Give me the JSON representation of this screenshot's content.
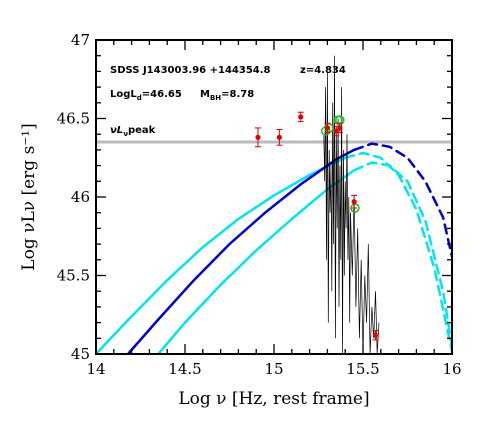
{
  "chart_data": {
    "type": "line",
    "xlabel": "Log ν [Hz, rest frame]",
    "ylabel": "Log νLν [erg s⁻¹]",
    "xlim": [
      14,
      16
    ],
    "ylim": [
      45,
      47
    ],
    "x_ticks": [
      14,
      14.5,
      15,
      15.5,
      16
    ],
    "y_ticks": [
      45,
      45.5,
      46,
      46.5,
      47
    ],
    "x_tick_labels": [
      "14",
      "14.5",
      "15",
      "15.5",
      "16"
    ],
    "y_tick_labels": [
      "45",
      "45.5",
      "46",
      "46.5",
      "47"
    ],
    "grid": false,
    "annotations": {
      "object_name": "SDSS J143003.96 +144354.8",
      "redshift_label": "z=4.834",
      "lum_label": "LogL",
      "lum_sub": "d",
      "lum_value": "=46.65",
      "mbh_label": "M",
      "mbh_sub": "BH",
      "mbh_value": "=8.78",
      "peak_prefix": "νL",
      "peak_sub": "ν",
      "peak_suffix": "peak"
    },
    "peak_line": {
      "y": 46.35,
      "color": "#bbbbbb"
    },
    "series": [
      {
        "style": "solid",
        "color": "#00e5ee",
        "x": [
          14.0,
          14.2,
          14.4,
          14.6,
          14.8,
          15.0,
          15.2,
          15.4
        ],
        "y": [
          45.0,
          45.24,
          45.47,
          45.68,
          45.86,
          46.01,
          46.14,
          46.25
        ]
      },
      {
        "style": "dashed",
        "color": "#00e5ee",
        "x": [
          15.4,
          15.5,
          15.6,
          15.7,
          15.8,
          15.9,
          16.0
        ],
        "y": [
          46.25,
          46.28,
          46.25,
          46.14,
          45.92,
          45.55,
          45.02
        ]
      },
      {
        "style": "solid",
        "color": "#00e5ee",
        "x": [
          14.35,
          14.5,
          14.7,
          14.9,
          15.1,
          15.3,
          15.45
        ],
        "y": [
          45.0,
          45.2,
          45.44,
          45.66,
          45.86,
          46.05,
          46.17
        ]
      },
      {
        "style": "dashed",
        "color": "#00e5ee",
        "x": [
          15.45,
          15.55,
          15.65,
          15.75,
          15.85,
          15.95,
          16.0
        ],
        "y": [
          46.17,
          46.22,
          46.2,
          46.1,
          45.85,
          45.4,
          45.05
        ]
      },
      {
        "style": "solid",
        "color": "#0000cc",
        "x": [
          14.18,
          14.35,
          14.55,
          14.75,
          14.95,
          15.15,
          15.35,
          15.45
        ],
        "y": [
          45.0,
          45.22,
          45.47,
          45.7,
          45.9,
          46.08,
          46.24,
          46.3
        ]
      },
      {
        "style": "dashed",
        "color": "#0000cc",
        "x": [
          15.45,
          15.55,
          15.65,
          15.75,
          15.85,
          15.95,
          16.0
        ],
        "y": [
          46.3,
          46.34,
          46.32,
          46.25,
          46.1,
          45.87,
          45.62
        ]
      }
    ],
    "spectrum": {
      "color": "#000000",
      "segments": [
        {
          "x": [
            15.28,
            15.285,
            15.29,
            15.295,
            15.3,
            15.305,
            15.31,
            15.315,
            15.32,
            15.325,
            15.33,
            15.335,
            15.34,
            15.345,
            15.35,
            15.355,
            15.36,
            15.365,
            15.37,
            15.375,
            15.38,
            15.385,
            15.39,
            15.395,
            15.4,
            15.405,
            15.41,
            15.415,
            15.42,
            15.425,
            15.43
          ],
          "y": [
            46.4,
            46.1,
            46.7,
            45.6,
            46.8,
            45.2,
            46.3,
            45.9,
            46.2,
            45.4,
            46.6,
            45.7,
            46.9,
            45.1,
            46.4,
            45.8,
            46.5,
            45.3,
            46.2,
            45.6,
            46.7,
            45.0,
            46.3,
            45.5,
            46.1,
            45.8,
            46.4,
            45.6,
            46.0,
            45.2,
            45.9
          ]
        },
        {
          "x": [
            15.43,
            15.44,
            15.45,
            15.46,
            15.47,
            15.48,
            15.49,
            15.5,
            15.51,
            15.52,
            15.53,
            15.54,
            15.55,
            15.56,
            15.57,
            15.58,
            15.59
          ],
          "y": [
            45.9,
            45.5,
            46.0,
            45.3,
            45.8,
            45.1,
            45.6,
            45.0,
            45.5,
            45.2,
            45.7,
            45.0,
            45.3,
            45.1,
            45.4,
            45.0,
            45.2
          ]
        }
      ]
    },
    "photometry_red": {
      "color": "#dd0000",
      "x": [
        14.91,
        15.03,
        15.15,
        15.3,
        15.35,
        15.37,
        15.45,
        15.57
      ],
      "y": [
        46.38,
        46.38,
        46.51,
        46.44,
        46.42,
        46.44,
        45.97,
        45.12
      ],
      "err": [
        0.06,
        0.05,
        0.03,
        0.03,
        0.03,
        0.03,
        0.04,
        0.03
      ]
    },
    "photometry_green": {
      "color": "#22bb22",
      "x": [
        15.29,
        15.31,
        15.36,
        15.37,
        15.455
      ],
      "y": [
        46.42,
        46.44,
        46.49,
        46.49,
        45.93
      ]
    }
  }
}
